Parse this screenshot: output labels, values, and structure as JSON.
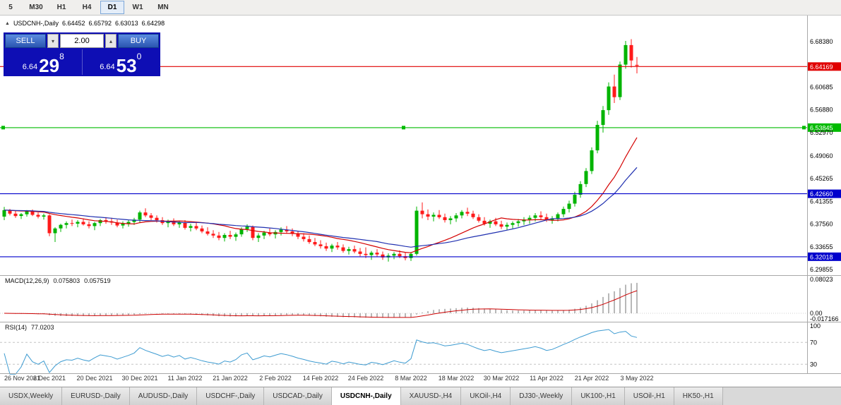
{
  "toolbar": {
    "timeframes": [
      {
        "label": "5",
        "active": false
      },
      {
        "label": "M30",
        "active": false
      },
      {
        "label": "H1",
        "active": false
      },
      {
        "label": "H4",
        "active": false
      },
      {
        "label": "D1",
        "active": true
      },
      {
        "label": "W1",
        "active": false
      },
      {
        "label": "MN",
        "active": false
      }
    ]
  },
  "chart": {
    "header": {
      "collapse_icon": "▲",
      "symbol": "USDCNH-,Daily",
      "open": "6.64452",
      "high": "6.65792",
      "low": "6.63013",
      "close": "6.64298"
    },
    "trade_widget": {
      "sell_label": "SELL",
      "buy_label": "BUY",
      "volume": "2.00",
      "volume_down_icon": "▾",
      "volume_up_icon": "▴",
      "sell_price": {
        "prefix": "6.64",
        "big": "29",
        "sup": "8"
      },
      "buy_price": {
        "prefix": "6.64",
        "big": "53",
        "sup": "0"
      }
    },
    "hlines": [
      {
        "value": "6.64169",
        "color": "#e00000",
        "selected": false
      },
      {
        "value": "6.53845",
        "color": "#00bb00",
        "selected": true
      },
      {
        "value": "6.42660",
        "color": "#0000cc",
        "selected": false
      },
      {
        "value": "6.32018",
        "color": "#0000cc",
        "selected": false
      }
    ],
    "price_axis": [
      "6.68380",
      "6.60685",
      "6.56880",
      "6.52970",
      "6.49060",
      "6.45265",
      "6.41355",
      "6.37560",
      "6.33655",
      "6.29855"
    ]
  },
  "panels": {
    "macd": {
      "name": "MACD(12,26,9)",
      "value_main": "0.075803",
      "value_signal": "0.057519",
      "axis": [
        "0.08023",
        "0.00",
        "-0.017166"
      ]
    },
    "rsi": {
      "name": "RSI(14)",
      "value": "77.0203",
      "axis": [
        "100",
        "70",
        "30"
      ]
    }
  },
  "tabs": [
    {
      "label": "USDX,Weekly",
      "active": false
    },
    {
      "label": "EURUSD-,Daily",
      "active": false
    },
    {
      "label": "AUDUSD-,Daily",
      "active": false
    },
    {
      "label": "USDCHF-,Daily",
      "active": false
    },
    {
      "label": "USDCAD-,Daily",
      "active": false
    },
    {
      "label": "USDCNH-,Daily",
      "active": true
    },
    {
      "label": "XAUUSD-,H4",
      "active": false
    },
    {
      "label": "UKOil-,H4",
      "active": false
    },
    {
      "label": "DJ30-,Weekly",
      "active": false
    },
    {
      "label": "UK100-,H1",
      "active": false
    },
    {
      "label": "USOil-,H1",
      "active": false
    },
    {
      "label": "HK50-,H1",
      "active": false
    }
  ],
  "colors": {
    "up": "#00b400",
    "down": "#ff1a1a",
    "ma_fast": "#d40000",
    "ma_slow": "#2030b0",
    "macd_hist": "#999999",
    "macd_signal": "#cc0000",
    "rsi_line": "#3d9bd1"
  },
  "chart_data": {
    "type": "candlestick",
    "symbol": "USDCNH",
    "timeframe": "Daily",
    "y_range": [
      6.29855,
      6.6838
    ],
    "x_ticks": [
      {
        "i": 0,
        "label": "26 Nov 2021"
      },
      {
        "i": 8,
        "label": "8 Dec 2021"
      },
      {
        "i": 16,
        "label": "20 Dec 2021"
      },
      {
        "i": 24,
        "label": "30 Dec 2021"
      },
      {
        "i": 32,
        "label": "11 Jan 2022"
      },
      {
        "i": 40,
        "label": "21 Jan 2022"
      },
      {
        "i": 48,
        "label": "2 Feb 2022"
      },
      {
        "i": 56,
        "label": "14 Feb 2022"
      },
      {
        "i": 64,
        "label": "24 Feb 2022"
      },
      {
        "i": 72,
        "label": "8 Mar 2022"
      },
      {
        "i": 80,
        "label": "18 Mar 2022"
      },
      {
        "i": 88,
        "label": "30 Mar 2022"
      },
      {
        "i": 96,
        "label": "11 Apr 2022"
      },
      {
        "i": 104,
        "label": "21 Apr 2022"
      },
      {
        "i": 112,
        "label": "3 May 2022"
      }
    ],
    "overlays": [
      {
        "name": "ma-fast",
        "period": 16
      },
      {
        "name": "ma-slow",
        "period": 25
      }
    ],
    "indicators": [
      {
        "name": "MACD",
        "params": [
          12,
          26,
          9
        ]
      },
      {
        "name": "RSI",
        "params": [
          14
        ]
      }
    ],
    "candles": [
      [
        6.388,
        6.4045,
        6.382,
        6.399
      ],
      [
        6.399,
        6.401,
        6.39,
        6.393
      ],
      [
        6.393,
        6.398,
        6.386,
        6.389
      ],
      [
        6.389,
        6.394,
        6.384,
        6.392
      ],
      [
        6.392,
        6.399,
        6.388,
        6.397
      ],
      [
        6.397,
        6.4,
        6.389,
        6.391
      ],
      [
        6.391,
        6.395,
        6.385,
        6.388
      ],
      [
        6.388,
        6.393,
        6.383,
        6.39
      ],
      [
        6.39,
        6.392,
        6.355,
        6.36
      ],
      [
        6.36,
        6.37,
        6.345,
        6.368
      ],
      [
        6.368,
        6.376,
        6.362,
        6.374
      ],
      [
        6.374,
        6.38,
        6.368,
        6.377
      ],
      [
        6.377,
        6.383,
        6.372,
        6.376
      ],
      [
        6.376,
        6.382,
        6.37,
        6.379
      ],
      [
        6.379,
        6.385,
        6.373,
        6.375
      ],
      [
        6.375,
        6.38,
        6.368,
        6.372
      ],
      [
        6.372,
        6.379,
        6.365,
        6.377
      ],
      [
        6.377,
        6.384,
        6.372,
        6.382
      ],
      [
        6.382,
        6.387,
        6.376,
        6.38
      ],
      [
        6.38,
        6.386,
        6.374,
        6.378
      ],
      [
        6.378,
        6.383,
        6.37,
        6.373
      ],
      [
        6.373,
        6.38,
        6.368,
        6.376
      ],
      [
        6.376,
        6.382,
        6.371,
        6.379
      ],
      [
        6.379,
        6.386,
        6.374,
        6.383
      ],
      [
        6.383,
        6.398,
        6.378,
        6.395
      ],
      [
        6.395,
        6.402,
        6.387,
        6.39
      ],
      [
        6.39,
        6.394,
        6.382,
        6.386
      ],
      [
        6.386,
        6.39,
        6.378,
        6.382
      ],
      [
        6.382,
        6.387,
        6.374,
        6.377
      ],
      [
        6.377,
        6.383,
        6.37,
        6.38
      ],
      [
        6.38,
        6.385,
        6.372,
        6.375
      ],
      [
        6.375,
        6.381,
        6.369,
        6.378
      ],
      [
        6.378,
        6.382,
        6.366,
        6.369
      ],
      [
        6.369,
        6.376,
        6.363,
        6.372
      ],
      [
        6.372,
        6.378,
        6.365,
        6.368
      ],
      [
        6.368,
        6.373,
        6.36,
        6.363
      ],
      [
        6.363,
        6.37,
        6.356,
        6.359
      ],
      [
        6.359,
        6.365,
        6.352,
        6.356
      ],
      [
        6.356,
        6.362,
        6.348,
        6.352
      ],
      [
        6.352,
        6.36,
        6.346,
        6.357
      ],
      [
        6.357,
        6.364,
        6.35,
        6.354
      ],
      [
        6.354,
        6.361,
        6.347,
        6.358
      ],
      [
        6.358,
        6.37,
        6.354,
        6.367
      ],
      [
        6.367,
        6.375,
        6.362,
        6.371
      ],
      [
        6.371,
        6.373,
        6.348,
        6.352
      ],
      [
        6.352,
        6.36,
        6.345,
        6.356
      ],
      [
        6.356,
        6.364,
        6.35,
        6.361
      ],
      [
        6.361,
        6.368,
        6.355,
        6.358
      ],
      [
        6.358,
        6.365,
        6.351,
        6.362
      ],
      [
        6.362,
        6.37,
        6.356,
        6.366
      ],
      [
        6.366,
        6.372,
        6.359,
        6.363
      ],
      [
        6.363,
        6.368,
        6.355,
        6.359
      ],
      [
        6.359,
        6.364,
        6.35,
        6.354
      ],
      [
        6.354,
        6.36,
        6.346,
        6.35
      ],
      [
        6.35,
        6.356,
        6.342,
        6.345
      ],
      [
        6.345,
        6.352,
        6.338,
        6.341
      ],
      [
        6.341,
        6.348,
        6.334,
        6.338
      ],
      [
        6.338,
        6.344,
        6.33,
        6.334
      ],
      [
        6.334,
        6.342,
        6.328,
        6.339
      ],
      [
        6.339,
        6.345,
        6.332,
        6.336
      ],
      [
        6.336,
        6.341,
        6.327,
        6.33
      ],
      [
        6.33,
        6.337,
        6.324,
        6.333
      ],
      [
        6.333,
        6.339,
        6.326,
        6.329
      ],
      [
        6.329,
        6.335,
        6.321,
        6.325
      ],
      [
        6.325,
        6.336,
        6.318,
        6.323
      ],
      [
        6.323,
        6.33,
        6.315,
        6.327
      ],
      [
        6.327,
        6.333,
        6.32,
        6.324
      ],
      [
        6.324,
        6.329,
        6.315,
        6.319
      ],
      [
        6.319,
        6.326,
        6.312,
        6.322
      ],
      [
        6.322,
        6.328,
        6.316,
        6.325
      ],
      [
        6.325,
        6.331,
        6.318,
        6.321
      ],
      [
        6.321,
        6.327,
        6.314,
        6.318
      ],
      [
        6.318,
        6.328,
        6.313,
        6.325
      ],
      [
        6.325,
        6.405,
        6.322,
        6.398
      ],
      [
        6.398,
        6.412,
        6.385,
        6.392
      ],
      [
        6.392,
        6.4,
        6.382,
        6.388
      ],
      [
        6.388,
        6.395,
        6.38,
        6.391
      ],
      [
        6.391,
        6.399,
        6.384,
        6.387
      ],
      [
        6.387,
        6.393,
        6.378,
        6.382
      ],
      [
        6.382,
        6.389,
        6.375,
        6.385
      ],
      [
        6.385,
        6.394,
        6.379,
        6.39
      ],
      [
        6.39,
        6.399,
        6.385,
        6.396
      ],
      [
        6.396,
        6.403,
        6.389,
        6.393
      ],
      [
        6.393,
        6.398,
        6.384,
        6.387
      ],
      [
        6.387,
        6.392,
        6.378,
        6.381
      ],
      [
        6.381,
        6.387,
        6.373,
        6.376
      ],
      [
        6.376,
        6.383,
        6.369,
        6.38
      ],
      [
        6.38,
        6.386,
        6.372,
        6.375
      ],
      [
        6.375,
        6.381,
        6.367,
        6.371
      ],
      [
        6.371,
        6.378,
        6.365,
        6.374
      ],
      [
        6.374,
        6.38,
        6.368,
        6.377
      ],
      [
        6.377,
        6.384,
        6.371,
        6.38
      ],
      [
        6.38,
        6.387,
        6.374,
        6.383
      ],
      [
        6.383,
        6.39,
        6.376,
        6.386
      ],
      [
        6.386,
        6.394,
        6.38,
        6.39
      ],
      [
        6.39,
        6.397,
        6.383,
        6.387
      ],
      [
        6.387,
        6.393,
        6.379,
        6.382
      ],
      [
        6.382,
        6.389,
        6.376,
        6.385
      ],
      [
        6.385,
        6.395,
        6.38,
        6.392
      ],
      [
        6.392,
        6.405,
        6.387,
        6.401
      ],
      [
        6.401,
        6.415,
        6.395,
        6.41
      ],
      [
        6.41,
        6.43,
        6.405,
        6.425
      ],
      [
        6.425,
        6.448,
        6.42,
        6.443
      ],
      [
        6.443,
        6.47,
        6.438,
        6.465
      ],
      [
        6.465,
        6.505,
        6.46,
        6.5
      ],
      [
        6.5,
        6.55,
        6.495,
        6.543
      ],
      [
        6.543,
        6.575,
        6.53,
        6.568
      ],
      [
        6.568,
        6.615,
        6.56,
        6.608
      ],
      [
        6.608,
        6.628,
        6.58,
        6.59
      ],
      [
        6.59,
        6.65,
        6.585,
        6.645
      ],
      [
        6.645,
        6.685,
        6.638,
        6.678
      ],
      [
        6.678,
        6.688,
        6.64,
        6.652
      ],
      [
        6.6445,
        6.6579,
        6.6301,
        6.643
      ]
    ]
  }
}
